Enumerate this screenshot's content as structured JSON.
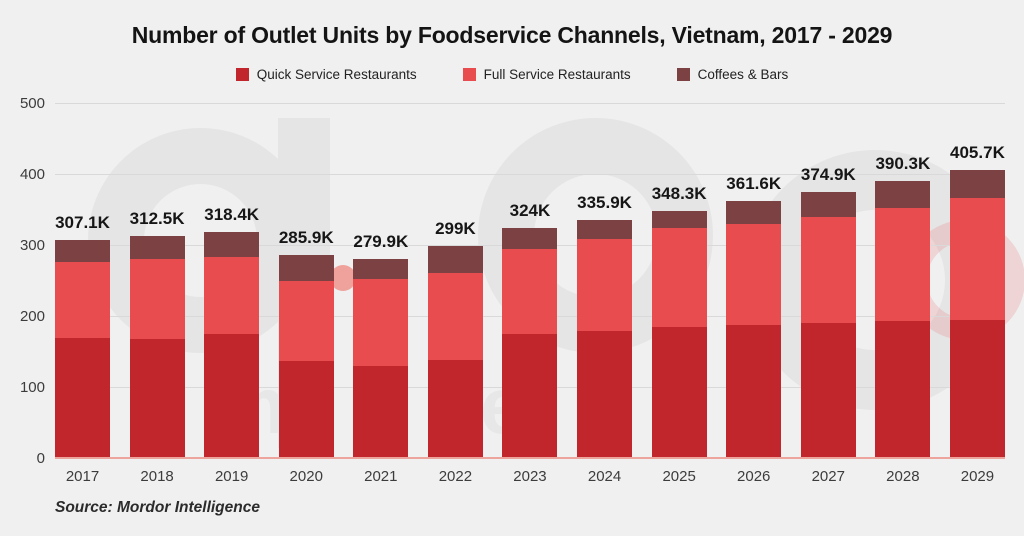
{
  "chart": {
    "title": "Number of Outlet Units by Foodservice Channels, Vietnam, 2017 - 2029",
    "source": "Source: Mordor Intelligence",
    "background_color": "#f0f0f0",
    "gridline_color": "#d9d9d9",
    "baseline_color": "#eca49d",
    "y_axis": {
      "tick_values": [
        500,
        400,
        300,
        200,
        100,
        0
      ]
    }
  },
  "chart_data": {
    "type": "bar",
    "stacked": true,
    "title": "Number of Outlet Units by Foodservice Channels, Vietnam, 2017 - 2029",
    "xlabel": "",
    "ylabel": "",
    "unit": "thousand outlet units (K)",
    "ylim": [
      0,
      500
    ],
    "grid": true,
    "legend_position": "top",
    "categories": [
      "2017",
      "2018",
      "2019",
      "2020",
      "2021",
      "2022",
      "2023",
      "2024",
      "2025",
      "2026",
      "2027",
      "2028",
      "2029"
    ],
    "series": [
      {
        "name": "Quick Service Restaurants",
        "color": "#c1262c",
        "values": [
          169,
          168,
          174,
          137,
          129,
          138,
          175,
          179,
          184,
          188,
          190,
          193,
          195
        ]
      },
      {
        "name": "Full Service Restaurants",
        "color": "#e94c4e",
        "values": [
          107,
          113,
          109.5,
          112,
          123,
          122,
          119,
          129,
          139.8,
          141.4,
          149.2,
          159.7,
          170.9
        ]
      },
      {
        "name": "Coffees & Bars",
        "color": "#7c4143",
        "values": [
          31.1,
          31.5,
          34.9,
          36.9,
          27.9,
          39,
          30,
          27.9,
          24.5,
          32.2,
          35.7,
          37.6,
          39.8
        ]
      }
    ],
    "totals": [
      307.1,
      312.5,
      318.4,
      285.9,
      279.9,
      299,
      324,
      335.9,
      348.3,
      361.6,
      374.9,
      390.3,
      405.7
    ],
    "total_labels": [
      "307.1K",
      "312.5K",
      "318.4K",
      "285.9K",
      "279.9K",
      "299K",
      "324K",
      "335.9K",
      "348.3K",
      "361.6K",
      "374.9K",
      "390.3K",
      "405.7K"
    ]
  }
}
